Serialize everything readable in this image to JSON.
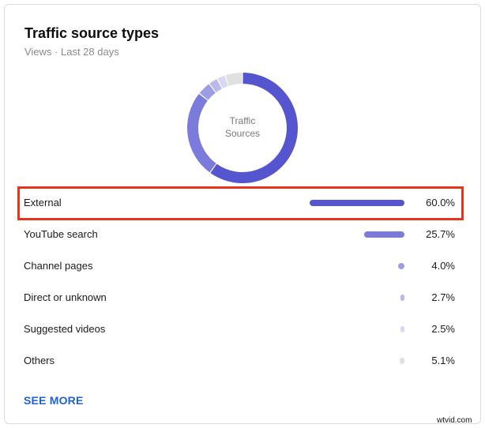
{
  "card": {
    "title": "Traffic source types",
    "subtitle": "Views · Last 28 days",
    "donut_center_label_line1": "Traffic",
    "donut_center_label_line2": "Sources",
    "see_more_label": "SEE MORE"
  },
  "watermark": "wtvid.com",
  "colors": {
    "highlight_border": "#e8341c",
    "link": "#1e63d0"
  },
  "rows": [
    {
      "label": "External",
      "percent": "60.0%",
      "value": 60.0,
      "color": "#5555d0",
      "highlighted": true
    },
    {
      "label": "YouTube search",
      "percent": "25.7%",
      "value": 25.7,
      "color": "#7b7bdb",
      "highlighted": false
    },
    {
      "label": "Channel pages",
      "percent": "4.0%",
      "value": 4.0,
      "color": "#9d9de4",
      "highlighted": false
    },
    {
      "label": "Direct or unknown",
      "percent": "2.7%",
      "value": 2.7,
      "color": "#b9b9ec",
      "highlighted": false
    },
    {
      "label": "Suggested videos",
      "percent": "2.5%",
      "value": 2.5,
      "color": "#d8d8f4",
      "highlighted": false
    },
    {
      "label": "Others",
      "percent": "5.1%",
      "value": 5.1,
      "color": "#e0e0e0",
      "highlighted": false
    }
  ],
  "chart_data": {
    "type": "pie",
    "title": "Traffic source types",
    "subtitle": "Views · Last 28 days",
    "center_label": "Traffic Sources",
    "categories": [
      "External",
      "YouTube search",
      "Channel pages",
      "Direct or unknown",
      "Suggested videos",
      "Others"
    ],
    "values": [
      60.0,
      25.7,
      4.0,
      2.7,
      2.5,
      5.1
    ],
    "unit": "%",
    "colors": [
      "#5555d0",
      "#7b7bdb",
      "#9d9de4",
      "#b9b9ec",
      "#d8d8f4",
      "#e0e0e0"
    ],
    "donut": true,
    "legend_position": "below, as list rows with bars"
  }
}
